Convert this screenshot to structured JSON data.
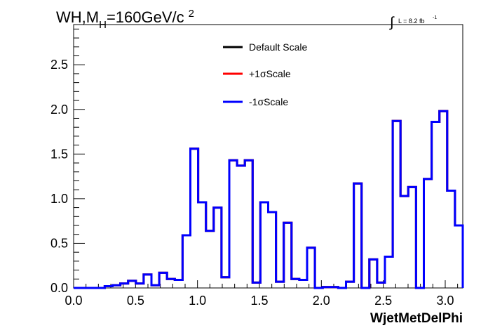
{
  "chart_data": {
    "type": "step-histogram",
    "title": "WH,M_H=160GeV/c^2",
    "title_parts": {
      "main": "WH,M",
      "sub": "H",
      "rest": "=160GeV/c",
      "sup": "2"
    },
    "lumi_label": {
      "integral": "∫",
      "text": "L = 8.2 fb",
      "sup": "-1"
    },
    "xlabel": "WjetMetDelPhi",
    "ylabel": "",
    "xlim": [
      0,
      3.1416
    ],
    "ylim": [
      0,
      2.95
    ],
    "x_ticks": [
      "0.0",
      "0.5",
      "1.0",
      "1.5",
      "2.0",
      "2.5",
      "3.0"
    ],
    "y_ticks": [
      "0.0",
      "0.5",
      "1.0",
      "1.5",
      "2.0",
      "2.5"
    ],
    "grid": false,
    "legend_position": "top-center",
    "bins": {
      "min": 0,
      "max": 3.1416,
      "count": 50
    },
    "series": [
      {
        "name": "Default Scale",
        "color": "#000000",
        "values": [
          0.0,
          0.0,
          0.0,
          0.0,
          0.02,
          0.03,
          0.05,
          0.08,
          0.05,
          0.15,
          0.03,
          0.17,
          0.1,
          0.09,
          0.59,
          1.56,
          0.96,
          0.64,
          0.9,
          0.12,
          1.43,
          1.37,
          1.43,
          0.06,
          0.96,
          0.85,
          0.07,
          0.73,
          0.1,
          0.09,
          0.45,
          0.0,
          0.01,
          0.01,
          0.0,
          0.07,
          1.17,
          0.0,
          0.32,
          0.06,
          0.35,
          1.87,
          1.03,
          1.13,
          0.0,
          1.22,
          1.86,
          1.98,
          1.09,
          0.7
        ]
      },
      {
        "name": "+1σScale",
        "color": "#ff0000",
        "values": [
          0.0,
          0.0,
          0.0,
          0.0,
          0.02,
          0.03,
          0.05,
          0.08,
          0.05,
          0.15,
          0.03,
          0.17,
          0.1,
          0.09,
          0.59,
          1.56,
          0.96,
          0.64,
          0.9,
          0.12,
          1.43,
          1.37,
          1.43,
          0.06,
          0.96,
          0.85,
          0.07,
          0.73,
          0.1,
          0.09,
          0.45,
          0.0,
          0.01,
          0.01,
          0.0,
          0.07,
          1.17,
          0.0,
          0.32,
          0.06,
          0.35,
          1.87,
          1.03,
          1.13,
          0.0,
          1.22,
          1.86,
          1.98,
          1.09,
          0.7
        ]
      },
      {
        "name": "-1σScale",
        "color": "#0000ff",
        "values": [
          0.0,
          0.0,
          0.0,
          0.0,
          0.02,
          0.03,
          0.05,
          0.08,
          0.05,
          0.15,
          0.03,
          0.17,
          0.1,
          0.09,
          0.59,
          1.56,
          0.96,
          0.64,
          0.9,
          0.12,
          1.43,
          1.37,
          1.43,
          0.06,
          0.96,
          0.85,
          0.07,
          0.73,
          0.1,
          0.09,
          0.45,
          0.0,
          0.01,
          0.01,
          0.0,
          0.07,
          1.17,
          0.0,
          0.32,
          0.06,
          0.35,
          1.87,
          1.03,
          1.13,
          0.0,
          1.22,
          1.86,
          1.98,
          1.09,
          0.7
        ]
      }
    ]
  }
}
